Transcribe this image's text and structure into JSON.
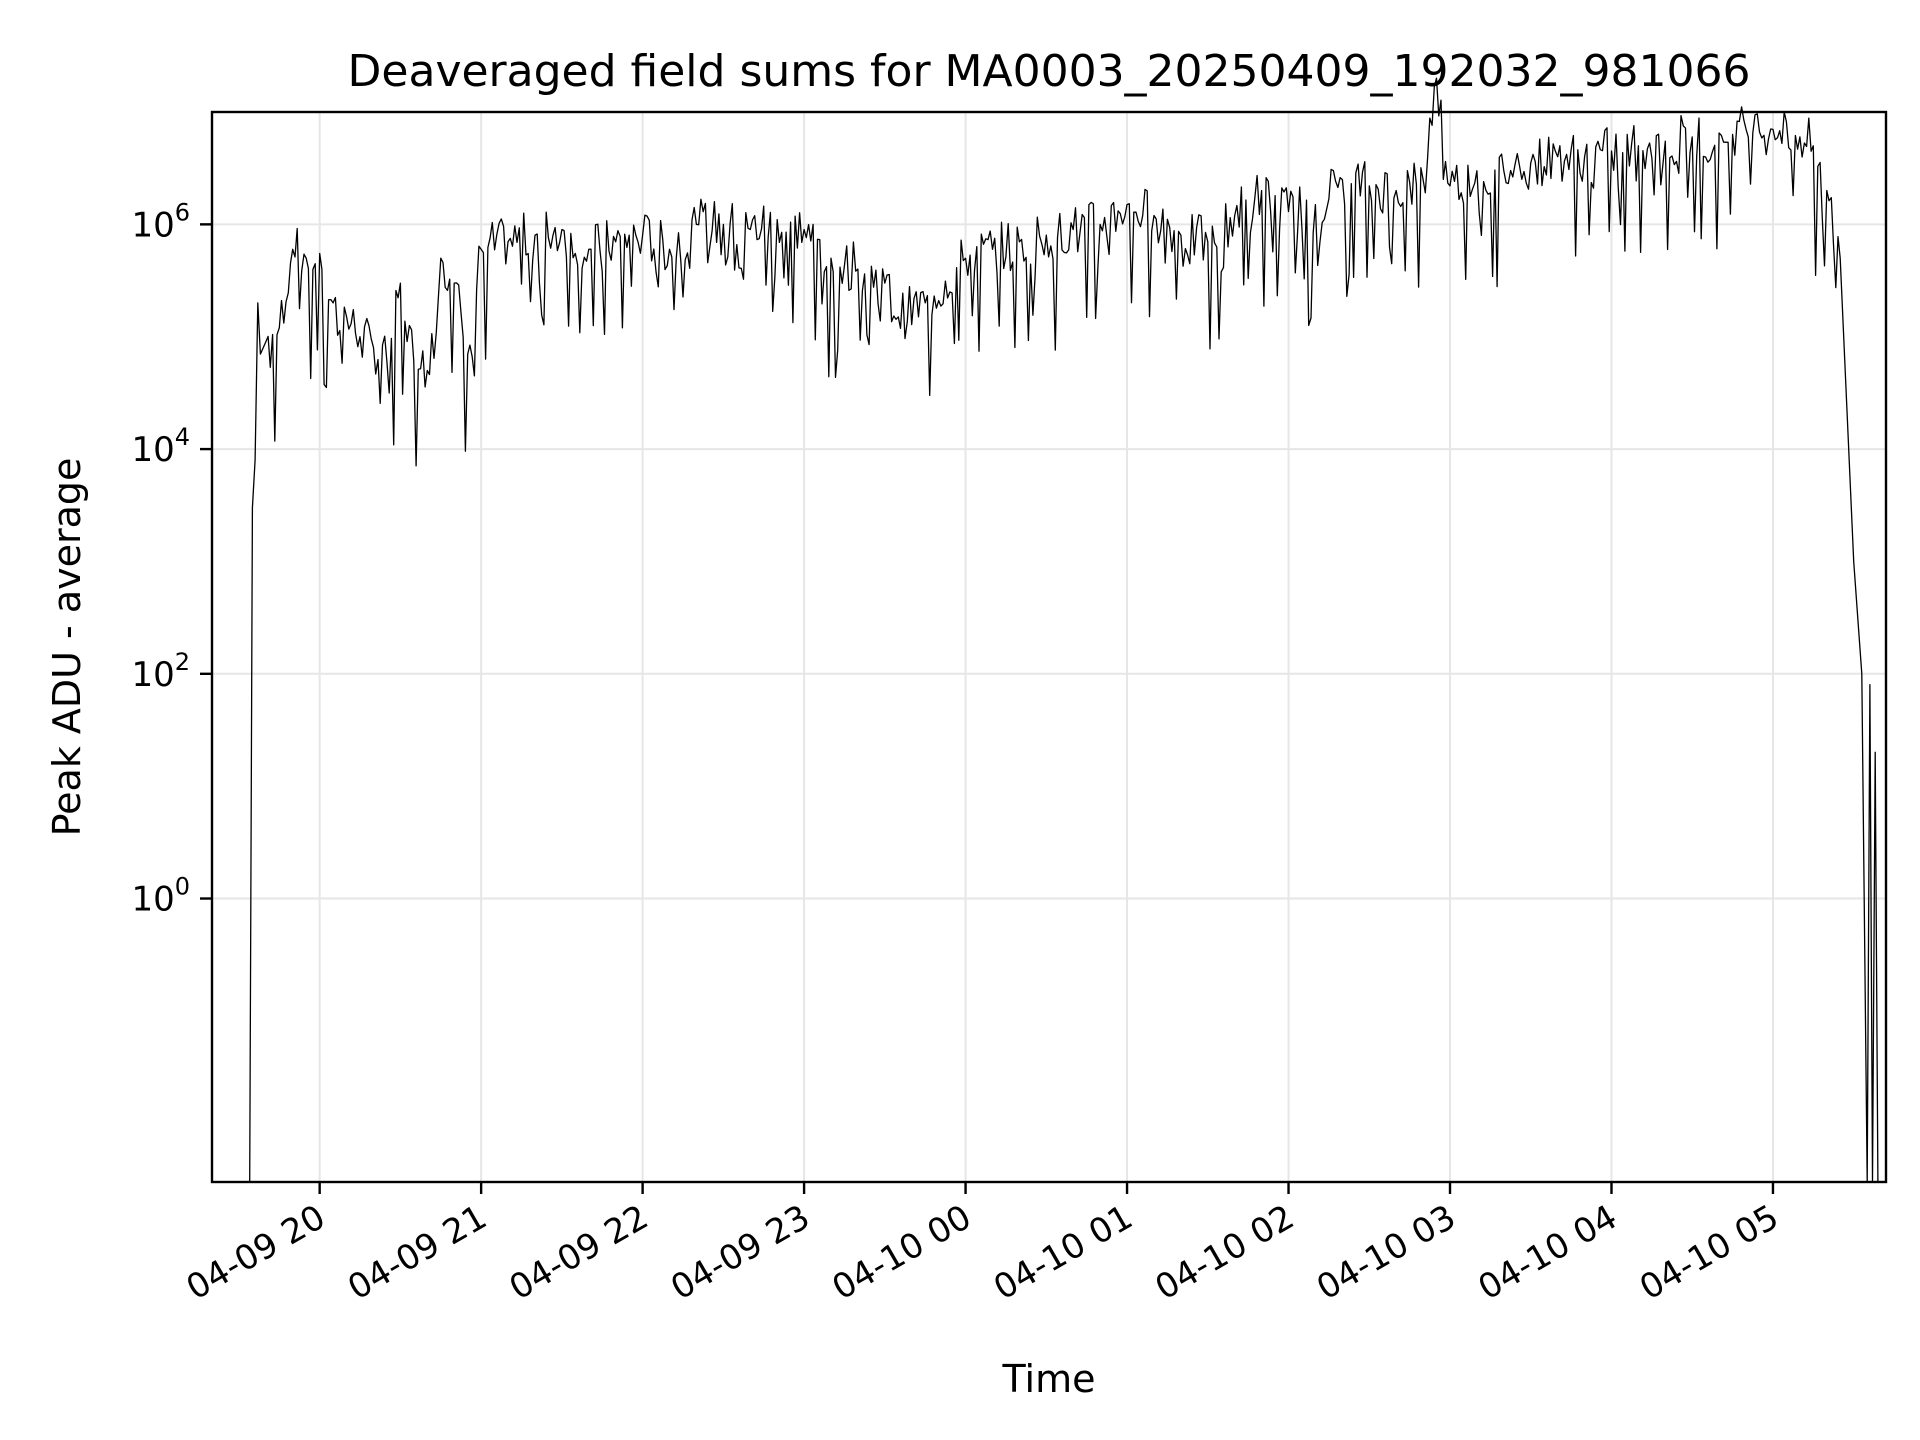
{
  "chart_data": {
    "type": "line",
    "title": "Deaveraged field sums for MA0003_20250409_192032_981066",
    "xlabel": "Time",
    "ylabel": "Peak ADU - average",
    "yscale": "log",
    "ylim": [
      0.003,
      10000000
    ],
    "xlim": [
      "2025-04-09 19:20",
      "2025-04-10 05:42"
    ],
    "grid": true,
    "legend": "none",
    "line_color": "#000000",
    "grid_color": "#e6e6e6",
    "x_ticks": [
      {
        "value": "2025-04-09 20:00",
        "label": "04-09 20"
      },
      {
        "value": "2025-04-09 21:00",
        "label": "04-09 21"
      },
      {
        "value": "2025-04-09 22:00",
        "label": "04-09 22"
      },
      {
        "value": "2025-04-09 23:00",
        "label": "04-09 23"
      },
      {
        "value": "2025-04-10 00:00",
        "label": "04-10 00"
      },
      {
        "value": "2025-04-10 01:00",
        "label": "04-10 01"
      },
      {
        "value": "2025-04-10 02:00",
        "label": "04-10 02"
      },
      {
        "value": "2025-04-10 03:00",
        "label": "04-10 03"
      },
      {
        "value": "2025-04-10 04:00",
        "label": "04-10 04"
      },
      {
        "value": "2025-04-10 05:00",
        "label": "04-10 05"
      }
    ],
    "y_ticks": [
      {
        "value": 1,
        "base": "10",
        "exp": "0"
      },
      {
        "value": 100,
        "base": "10",
        "exp": "2"
      },
      {
        "value": 10000,
        "base": "10",
        "exp": "4"
      },
      {
        "value": 1000000,
        "base": "10",
        "exp": "6"
      }
    ],
    "series": [
      {
        "x": [
          "2025-04-09 19:34",
          "2025-04-09 19:35",
          "2025-04-09 19:36",
          "2025-04-09 19:37",
          "2025-04-09 19:38",
          "2025-04-09 19:40",
          "2025-04-09 19:45",
          "2025-04-09 19:50",
          "2025-04-09 19:55",
          "2025-04-09 20:00",
          "2025-04-09 20:05",
          "2025-04-09 20:10",
          "2025-04-09 20:15",
          "2025-04-09 20:20",
          "2025-04-09 20:25",
          "2025-04-09 20:30",
          "2025-04-09 20:35",
          "2025-04-09 20:40",
          "2025-04-09 20:45",
          "2025-04-09 20:50",
          "2025-04-09 20:55",
          "2025-04-09 21:00",
          "2025-04-09 21:10",
          "2025-04-09 21:20",
          "2025-04-09 21:30",
          "2025-04-09 21:40",
          "2025-04-09 21:50",
          "2025-04-09 22:00",
          "2025-04-09 22:10",
          "2025-04-09 22:20",
          "2025-04-09 22:30",
          "2025-04-09 22:40",
          "2025-04-09 22:50",
          "2025-04-09 23:00",
          "2025-04-09 23:10",
          "2025-04-09 23:20",
          "2025-04-09 23:30",
          "2025-04-09 23:35",
          "2025-04-09 23:45",
          "2025-04-10 00:00",
          "2025-04-10 00:10",
          "2025-04-10 00:20",
          "2025-04-10 00:30",
          "2025-04-10 00:40",
          "2025-04-10 00:50",
          "2025-04-10 01:00",
          "2025-04-10 01:10",
          "2025-04-10 01:20",
          "2025-04-10 01:30",
          "2025-04-10 01:40",
          "2025-04-10 01:50",
          "2025-04-10 02:00",
          "2025-04-10 02:10",
          "2025-04-10 02:20",
          "2025-04-10 02:30",
          "2025-04-10 02:40",
          "2025-04-10 02:50",
          "2025-04-10 02:55",
          "2025-04-10 03:00",
          "2025-04-10 03:10",
          "2025-04-10 03:20",
          "2025-04-10 03:30",
          "2025-04-10 03:40",
          "2025-04-10 03:50",
          "2025-04-10 04:00",
          "2025-04-10 04:10",
          "2025-04-10 04:20",
          "2025-04-10 04:30",
          "2025-04-10 04:40",
          "2025-04-10 04:50",
          "2025-04-10 05:00",
          "2025-04-10 05:10",
          "2025-04-10 05:15",
          "2025-04-10 05:20",
          "2025-04-10 05:25",
          "2025-04-10 05:30",
          "2025-04-10 05:33",
          "2025-04-10 05:35",
          "2025-04-10 05:36",
          "2025-04-10 05:37",
          "2025-04-10 05:38",
          "2025-04-10 05:39"
        ],
        "y": [
          0.003,
          3000,
          8000,
          200000,
          70000,
          90000,
          120000,
          600000,
          500000,
          550000,
          200000,
          150000,
          100000,
          80000,
          60000,
          300000,
          60000,
          50000,
          500000,
          300000,
          70000,
          600000,
          700000,
          800000,
          900000,
          600000,
          700000,
          800000,
          600000,
          1000000,
          1000000,
          900000,
          1100000,
          900000,
          500000,
          400000,
          300000,
          150000,
          200000,
          500000,
          600000,
          700000,
          800000,
          900000,
          1000000,
          1500000,
          1200000,
          800000,
          700000,
          1200000,
          2000000,
          1300000,
          1500000,
          2500000,
          2200000,
          2000000,
          2500000,
          20000000,
          2200000,
          3000000,
          3000000,
          3500000,
          4000000,
          4000000,
          4500000,
          5000000,
          5500000,
          6000000,
          6500000,
          7000000,
          7000000,
          6000000,
          5000000,
          2000000,
          500000,
          1000,
          100,
          0.003,
          80,
          0.003,
          20,
          0.003
        ]
      }
    ],
    "y_range_description_values": []
  }
}
